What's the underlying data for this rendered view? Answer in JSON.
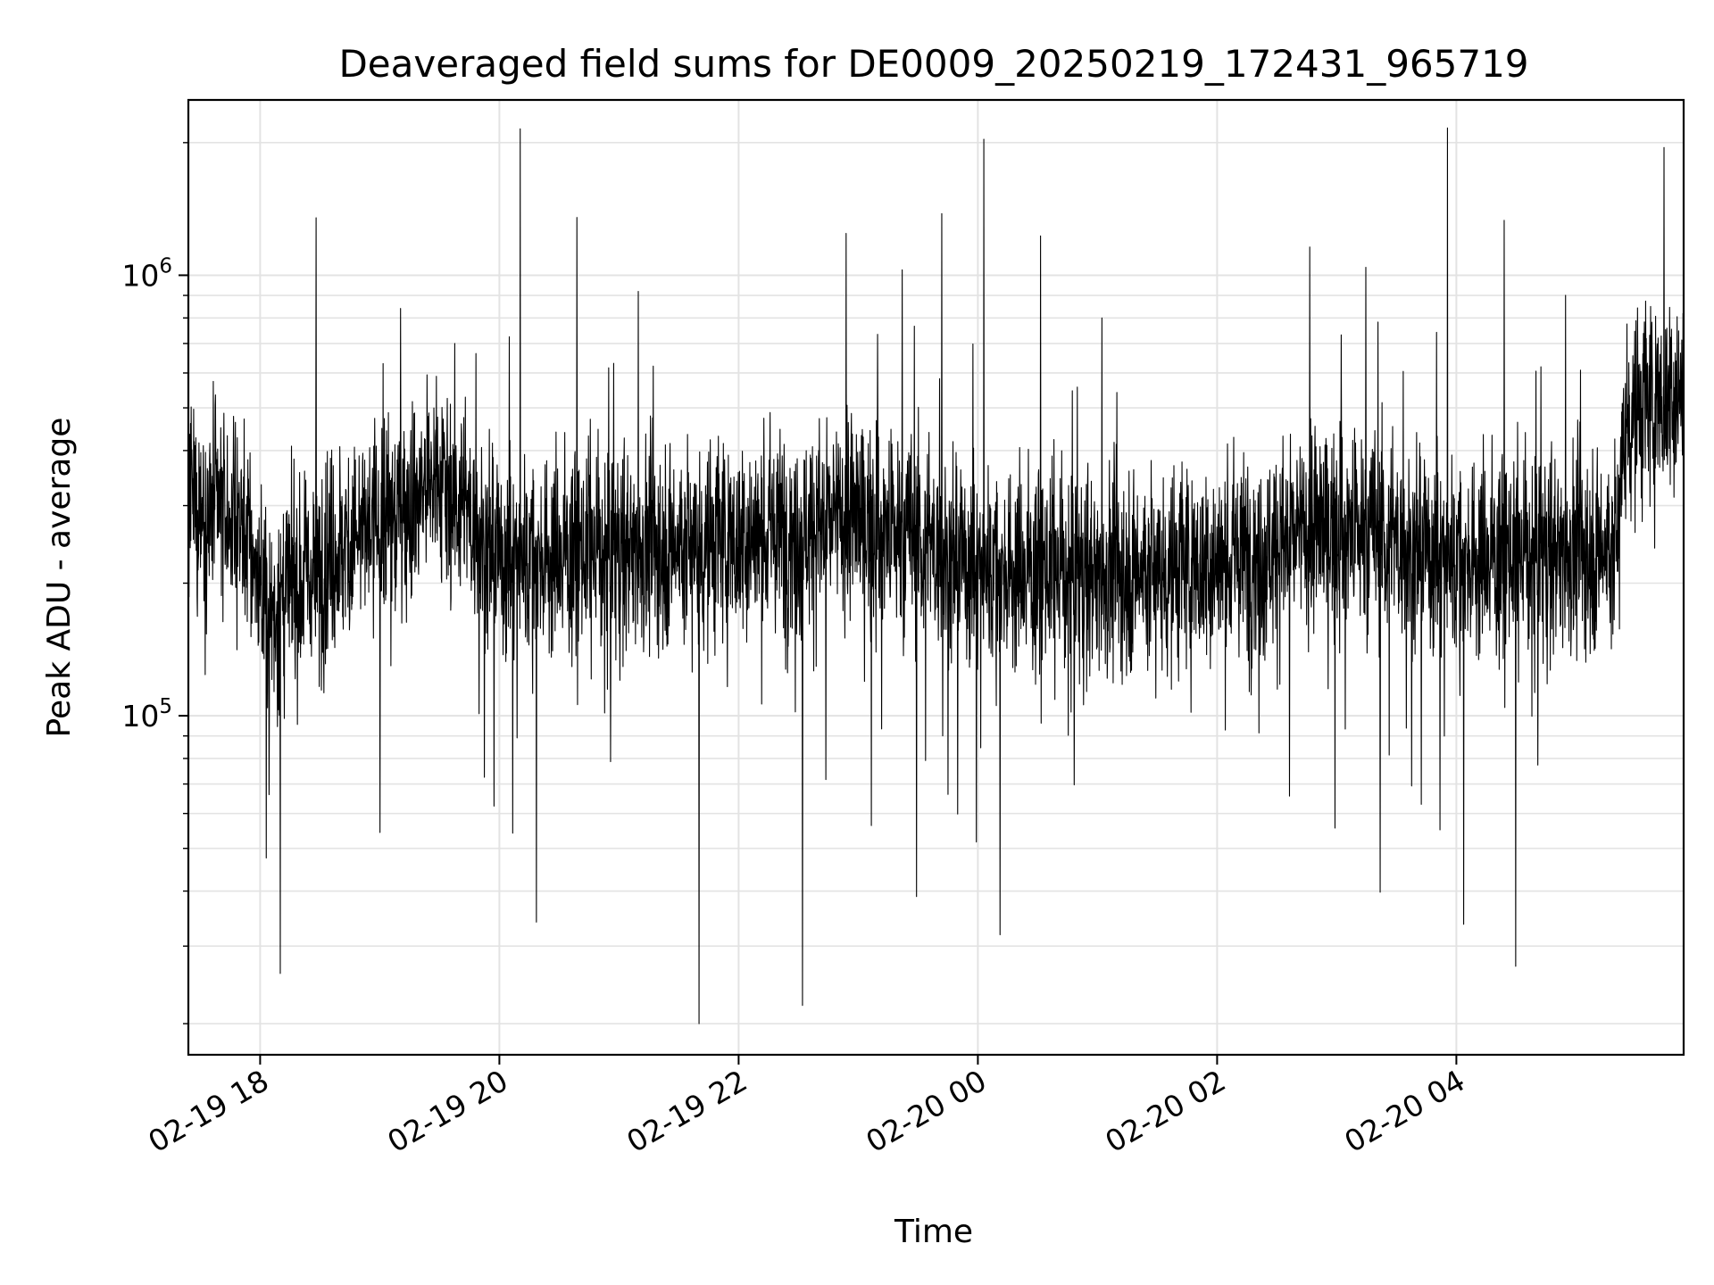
{
  "chart_data": {
    "type": "line",
    "title": "Deaveraged field sums for DE0009_20250219_172431_965719",
    "xlabel": "Time",
    "ylabel": "Peak ADU - average",
    "x_range": [
      "2025-02-19 17:24",
      "2025-02-20 05:54"
    ],
    "y_range": [
      17000,
      2500000
    ],
    "y_scale": "log",
    "grid": true,
    "legend": "none",
    "line_color": "#000000",
    "x_ticks": [
      {
        "value": "2025-02-19 18:00",
        "label": "02-19 18"
      },
      {
        "value": "2025-02-19 20:00",
        "label": "02-19 20"
      },
      {
        "value": "2025-02-19 22:00",
        "label": "02-19 22"
      },
      {
        "value": "2025-02-20 00:00",
        "label": "02-20 00"
      },
      {
        "value": "2025-02-20 02:00",
        "label": "02-20 02"
      },
      {
        "value": "2025-02-20 04:00",
        "label": "02-20 04"
      }
    ],
    "y_ticks": [
      {
        "value": 100000,
        "base": "10",
        "exp": "5"
      },
      {
        "value": 1000000,
        "base": "10",
        "exp": "6"
      }
    ],
    "series_trend": [
      {
        "x": "2025-02-19 17:24",
        "y": 300000
      },
      {
        "x": "2025-02-19 17:50",
        "y": 280000
      },
      {
        "x": "2025-02-19 18:05",
        "y": 170000
      },
      {
        "x": "2025-02-19 18:20",
        "y": 200000
      },
      {
        "x": "2025-02-19 18:40",
        "y": 240000
      },
      {
        "x": "2025-02-19 19:00",
        "y": 270000
      },
      {
        "x": "2025-02-19 19:30",
        "y": 350000
      },
      {
        "x": "2025-02-19 20:00",
        "y": 230000
      },
      {
        "x": "2025-02-19 21:00",
        "y": 240000
      },
      {
        "x": "2025-02-19 22:00",
        "y": 250000
      },
      {
        "x": "2025-02-19 23:00",
        "y": 280000
      },
      {
        "x": "2025-02-20 00:00",
        "y": 220000
      },
      {
        "x": "2025-02-20 01:00",
        "y": 210000
      },
      {
        "x": "2025-02-20 02:00",
        "y": 220000
      },
      {
        "x": "2025-02-20 03:00",
        "y": 270000
      },
      {
        "x": "2025-02-20 04:00",
        "y": 230000
      },
      {
        "x": "2025-02-20 05:20",
        "y": 240000
      },
      {
        "x": "2025-02-20 05:25",
        "y": 480000
      },
      {
        "x": "2025-02-20 05:54",
        "y": 550000
      }
    ],
    "extremes": [
      {
        "x": "2025-02-19 18:28",
        "y": 1350000
      },
      {
        "x": "2025-02-19 18:10",
        "y": 26000
      },
      {
        "x": "2025-02-19 21:40",
        "y": 20000
      },
      {
        "x": "2025-02-19 22:32",
        "y": 22000
      },
      {
        "x": "2025-02-19 23:42",
        "y": 1380000
      },
      {
        "x": "2025-02-20 05:44",
        "y": 1950000
      },
      {
        "x": "2025-02-20 04:30",
        "y": 27000
      }
    ]
  }
}
